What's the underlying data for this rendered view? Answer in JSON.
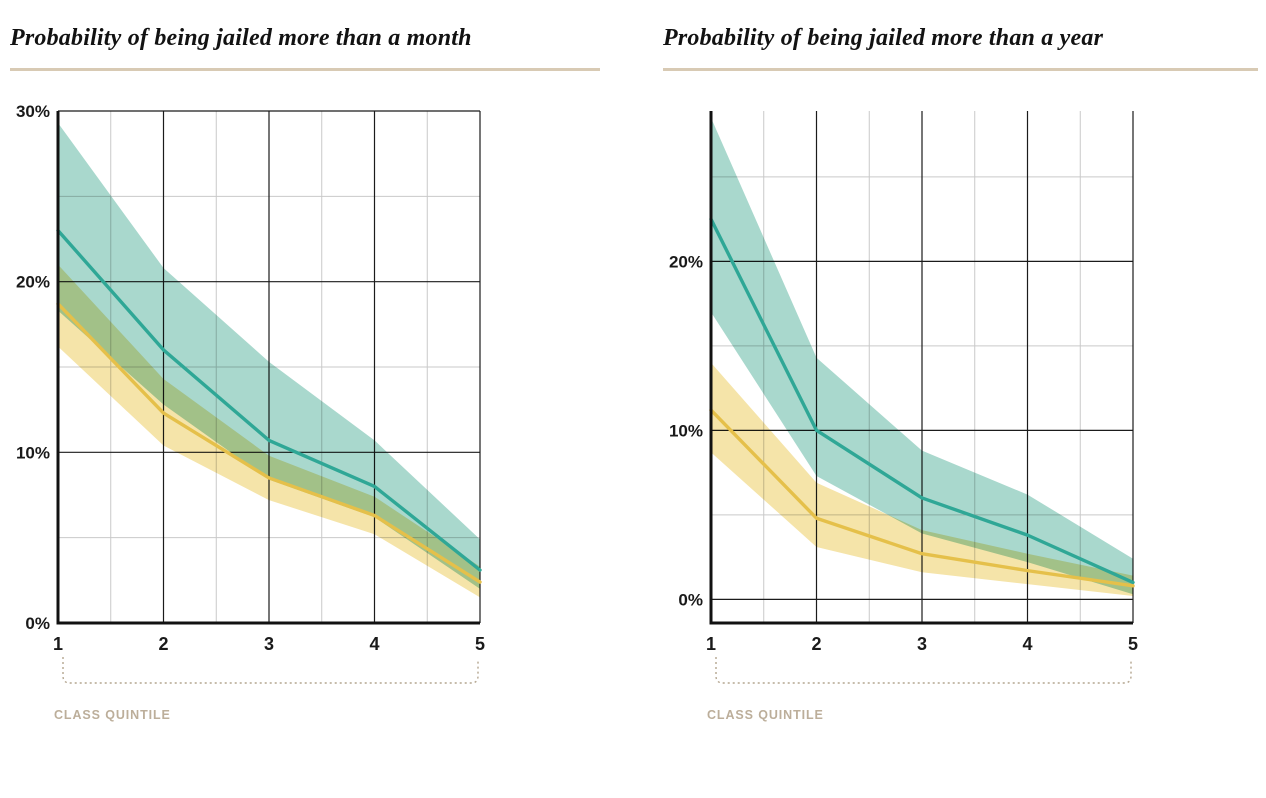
{
  "colors": {
    "title_rule": "#d8cab4",
    "grid_minor": "#c9c9c9",
    "grid_major": "#1b1b1b",
    "axis": "#111111",
    "bracket": "#b3a58f",
    "axis_label": "#bcae9a",
    "teal_line": "#2fa796",
    "teal_band": "#a9d8cd",
    "gold_line": "#e5c04a",
    "gold_band": "#f5e4a9"
  },
  "chart_data": [
    {
      "type": "line",
      "title": "Probability of being jailed more than a month",
      "xlabel": "CLASS QUINTILE",
      "x": [
        1,
        2,
        3,
        4,
        5
      ],
      "ylim": [
        0,
        30
      ],
      "yticks": [
        {
          "value": 0,
          "label": "0%"
        },
        {
          "value": 10,
          "label": "10%"
        },
        {
          "value": 20,
          "label": "20%"
        },
        {
          "value": 30,
          "label": "30%"
        }
      ],
      "major_gridlines": [
        10,
        20,
        30
      ],
      "minor_gridlines": [
        5,
        15,
        25
      ],
      "grid": true,
      "legend": "none",
      "series": [
        {
          "name": "teal",
          "color": "#2fa796",
          "band_color": "#a9d8cd",
          "values": [
            23,
            16,
            10.7,
            8,
            3.1
          ],
          "band_upper": [
            29.3,
            20.8,
            15.3,
            10.7,
            4.9
          ],
          "band_lower": [
            18.3,
            12.8,
            8.4,
            6.2,
            2.0
          ]
        },
        {
          "name": "gold",
          "color": "#e5c04a",
          "band_color": "#f5e4a9",
          "values": [
            18.7,
            12.3,
            8.5,
            6.3,
            2.4
          ],
          "band_upper": [
            21.0,
            14.3,
            9.8,
            7.4,
            3.3
          ],
          "band_lower": [
            16.2,
            10.4,
            7.2,
            5.2,
            1.5
          ]
        }
      ]
    },
    {
      "type": "line",
      "title": "Probability of being jailed more than a year",
      "xlabel": "CLASS QUINTILE",
      "x": [
        1,
        2,
        3,
        4,
        5
      ],
      "ylim": [
        -1.4,
        28.9
      ],
      "yticks": [
        {
          "value": 0,
          "label": "0%"
        },
        {
          "value": 10,
          "label": "10%"
        },
        {
          "value": 20,
          "label": "20%"
        }
      ],
      "major_gridlines": [
        0,
        10,
        20
      ],
      "minor_gridlines": [
        5,
        15,
        25
      ],
      "grid": true,
      "legend": "none",
      "series": [
        {
          "name": "teal",
          "color": "#2fa796",
          "band_color": "#a9d8cd",
          "values": [
            22.5,
            10,
            6,
            3.8,
            1
          ],
          "band_upper": [
            28.5,
            14.3,
            8.8,
            6.2,
            2.4
          ],
          "band_lower": [
            17.0,
            7.3,
            3.9,
            2.2,
            0.3
          ]
        },
        {
          "name": "gold",
          "color": "#e5c04a",
          "band_color": "#f5e4a9",
          "values": [
            11.2,
            4.8,
            2.7,
            1.7,
            0.8
          ],
          "band_upper": [
            14.0,
            6.9,
            4.1,
            2.7,
            1.4
          ],
          "band_lower": [
            8.7,
            3.1,
            1.6,
            0.9,
            0.2
          ]
        }
      ]
    }
  ]
}
